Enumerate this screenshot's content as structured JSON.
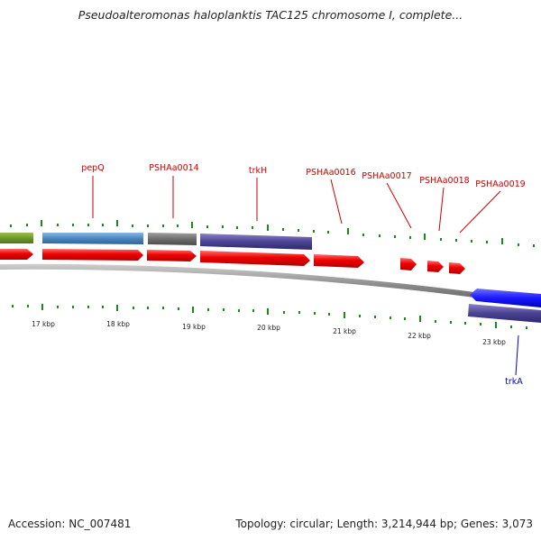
{
  "title": "Pseudoalteromonas haloplanktis TAC125 chromosome I, complete...",
  "footer": {
    "accession": "Accession: NC_007481",
    "summary": "Topology: circular; Length: 3,214,944 bp; Genes: 3,073"
  },
  "colors": {
    "forward_label": "#cc0000",
    "reverse_label": "#0000cc",
    "tick": "#1a8a1a",
    "backbone": "#888888"
  },
  "kbp_labels": [
    "17 kbp",
    "18 kbp",
    "19 kbp",
    "20 kbp",
    "21 kbp",
    "22 kbp",
    "23 kbp"
  ],
  "gene_labels": [
    {
      "text": "pepQ",
      "strand": "forward"
    },
    {
      "text": "PSHAa0014",
      "strand": "forward"
    },
    {
      "text": "trkH",
      "strand": "forward"
    },
    {
      "text": "PSHAa0016",
      "strand": "forward"
    },
    {
      "text": "PSHAa0017",
      "strand": "forward"
    },
    {
      "text": "PSHAa0018",
      "strand": "forward"
    },
    {
      "text": "PSHAa0019",
      "strand": "forward"
    },
    {
      "text": "trkA",
      "strand": "reverse"
    }
  ]
}
